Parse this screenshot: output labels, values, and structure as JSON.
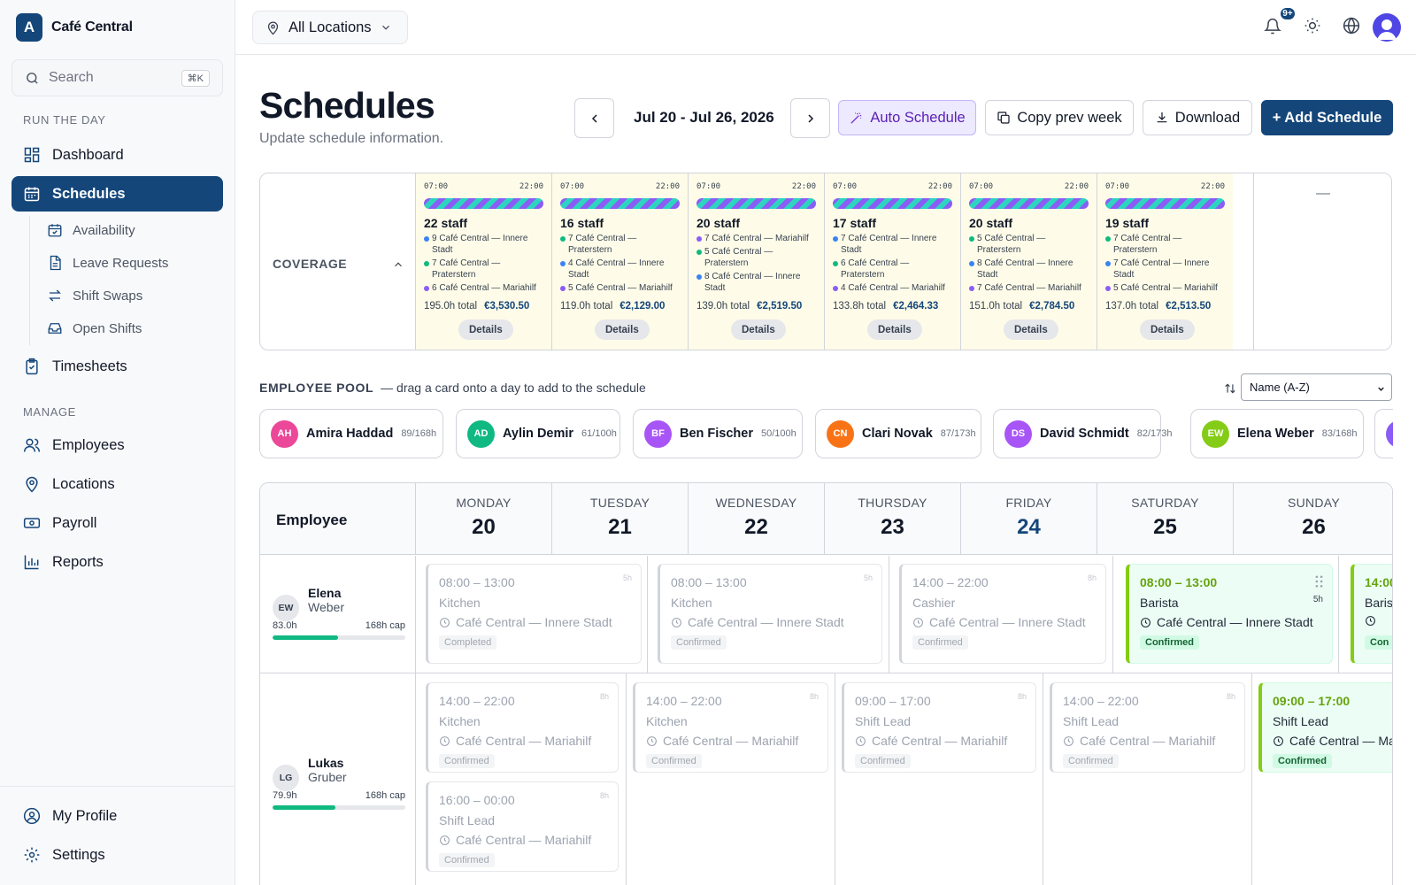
{
  "brand": {
    "logo_letter": "A",
    "name": "Café Central"
  },
  "search": {
    "placeholder": "Search",
    "shortcut": "⌘K"
  },
  "sidebar": {
    "run_label": "RUN THE DAY",
    "manage_label": "MANAGE",
    "items": {
      "dashboard": "Dashboard",
      "schedules": "Schedules",
      "availability": "Availability",
      "leave_requests": "Leave Requests",
      "shift_swaps": "Shift Swaps",
      "open_shifts": "Open Shifts",
      "timesheets": "Timesheets",
      "employees": "Employees",
      "locations": "Locations",
      "payroll": "Payroll",
      "reports": "Reports",
      "my_profile": "My Profile",
      "settings": "Settings"
    }
  },
  "topbar": {
    "location": "All Locations",
    "notification_badge": "9+"
  },
  "page": {
    "title": "Schedules",
    "subtitle": "Update schedule information."
  },
  "toolbar": {
    "date_range": "Jul 20 - Jul 26, 2026",
    "auto_schedule": "Auto Schedule",
    "copy_prev": "Copy prev week",
    "download": "Download",
    "add_schedule": "+ Add Schedule"
  },
  "coverage": {
    "label": "COVERAGE",
    "last_col": "—",
    "details_label": "Details",
    "days": [
      {
        "start": "07:00",
        "end": "22:00",
        "staff": "22 staff",
        "lines": [
          {
            "text": "9 Café Central — Innere Stadt",
            "color": "#3b82f6"
          },
          {
            "text": "7 Café Central — Praterstern",
            "color": "#10b981"
          },
          {
            "text": "6 Café Central — Mariahilf",
            "color": "#8b5cf6"
          }
        ],
        "hours": "195.0h total",
        "cost": "€3,530.50"
      },
      {
        "start": "07:00",
        "end": "22:00",
        "staff": "16 staff",
        "lines": [
          {
            "text": "7 Café Central — Praterstern",
            "color": "#10b981"
          },
          {
            "text": "4 Café Central — Innere Stadt",
            "color": "#3b82f6"
          },
          {
            "text": "5 Café Central — Mariahilf",
            "color": "#8b5cf6"
          }
        ],
        "hours": "119.0h total",
        "cost": "€2,129.00"
      },
      {
        "start": "07:00",
        "end": "22:00",
        "staff": "20 staff",
        "lines": [
          {
            "text": "7 Café Central — Mariahilf",
            "color": "#8b5cf6"
          },
          {
            "text": "5 Café Central — Praterstern",
            "color": "#10b981"
          },
          {
            "text": "8 Café Central — Innere Stadt",
            "color": "#3b82f6"
          }
        ],
        "hours": "139.0h total",
        "cost": "€2,519.50"
      },
      {
        "start": "07:00",
        "end": "22:00",
        "staff": "17 staff",
        "lines": [
          {
            "text": "7 Café Central — Innere Stadt",
            "color": "#3b82f6"
          },
          {
            "text": "6 Café Central — Praterstern",
            "color": "#10b981"
          },
          {
            "text": "4 Café Central — Mariahilf",
            "color": "#8b5cf6"
          }
        ],
        "hours": "133.8h total",
        "cost": "€2,464.33"
      },
      {
        "start": "07:00",
        "end": "22:00",
        "staff": "20 staff",
        "lines": [
          {
            "text": "5 Café Central — Praterstern",
            "color": "#10b981"
          },
          {
            "text": "8 Café Central — Innere Stadt",
            "color": "#3b82f6"
          },
          {
            "text": "7 Café Central — Mariahilf",
            "color": "#8b5cf6"
          }
        ],
        "hours": "151.0h total",
        "cost": "€2,784.50"
      },
      {
        "start": "07:00",
        "end": "22:00",
        "staff": "19 staff",
        "lines": [
          {
            "text": "7 Café Central — Praterstern",
            "color": "#10b981"
          },
          {
            "text": "7 Café Central — Innere Stadt",
            "color": "#3b82f6"
          },
          {
            "text": "5 Café Central — Mariahilf",
            "color": "#8b5cf6"
          }
        ],
        "hours": "137.0h total",
        "cost": "€2,513.50"
      }
    ]
  },
  "pool": {
    "title": "EMPLOYEE POOL",
    "hint": "— drag a card onto a day to add to the schedule",
    "sort_value": "Name (A-Z)",
    "employees": [
      {
        "initials": "AH",
        "name": "Amira Haddad",
        "hours": "89/168h",
        "color": "#ec4899"
      },
      {
        "initials": "AD",
        "name": "Aylin Demir",
        "hours": "61/100h",
        "color": "#10b981"
      },
      {
        "initials": "BF",
        "name": "Ben Fischer",
        "hours": "50/100h",
        "color": "#a855f7"
      },
      {
        "initials": "CN",
        "name": "Clari Novak",
        "hours": "87/173h",
        "color": "#f97316"
      },
      {
        "initials": "DS",
        "name": "David Schmidt",
        "hours": "82/173h",
        "color": "#a855f7"
      },
      {
        "initials": "EW",
        "name": "Elena Weber",
        "hours": "83/168h",
        "color": "#84cc16"
      }
    ]
  },
  "grid": {
    "employee_header": "Employee",
    "days": [
      {
        "name": "MONDAY",
        "num": "20"
      },
      {
        "name": "TUESDAY",
        "num": "21"
      },
      {
        "name": "WEDNESDAY",
        "num": "22"
      },
      {
        "name": "THURSDAY",
        "num": "23"
      },
      {
        "name": "FRIDAY",
        "num": "24"
      },
      {
        "name": "SATURDAY",
        "num": "25"
      },
      {
        "name": "SUNDAY",
        "num": "26"
      }
    ],
    "rows": [
      {
        "initials": "EW",
        "first": "Elena",
        "last": "Weber",
        "hours": "83.0h",
        "cap": "168h cap",
        "progress": 0.49,
        "shifts": [
          {
            "time": "08:00 – 13:00",
            "dur": "5h",
            "role": "Kitchen",
            "loc": "Café Central — Innere Stadt",
            "status": "Completed"
          },
          {
            "time": "08:00 – 13:00",
            "dur": "5h",
            "role": "Kitchen",
            "loc": "Café Central — Innere Stadt",
            "status": "Confirmed"
          },
          {
            "time": "14:00 – 22:00",
            "dur": "8h",
            "role": "Cashier",
            "loc": "Café Central — Innere Stadt",
            "status": "Confirmed"
          },
          {
            "time": "08:00 – 13:00",
            "dur": "5h",
            "role": "Barista",
            "loc": "Café Central — Innere Stadt",
            "status": "Confirmed"
          },
          {
            "time": "14:00",
            "role": "Baris",
            "status": "Con"
          }
        ]
      },
      {
        "initials": "LG",
        "first": "Lukas",
        "last": "Gruber",
        "hours": "79.9h",
        "cap": "168h cap",
        "progress": 0.47,
        "shifts": [
          {
            "time": "14:00 – 22:00",
            "dur": "8h",
            "role": "Kitchen",
            "loc": "Café Central — Mariahilf",
            "status": "Confirmed"
          },
          {
            "time": "16:00 – 00:00",
            "dur": "8h",
            "role": "Shift Lead",
            "loc": "Café Central — Mariahilf",
            "status": "Confirmed"
          },
          {
            "time": "14:00 – 22:00",
            "dur": "8h",
            "role": "Kitchen",
            "loc": "Café Central — Mariahilf",
            "status": "Confirmed"
          },
          {
            "time": "09:00 – 17:00",
            "dur": "8h",
            "role": "Shift Lead",
            "loc": "Café Central — Mariahilf",
            "status": "Confirmed"
          },
          {
            "time": "14:00 – 22:00",
            "dur": "8h",
            "role": "Shift Lead",
            "loc": "Café Central — Mariahilf",
            "status": "Confirmed"
          },
          {
            "time": "09:00 – 17:00",
            "role": "Shift Lead",
            "loc": "Café Central — Ma",
            "status": "Confirmed"
          }
        ]
      }
    ]
  }
}
